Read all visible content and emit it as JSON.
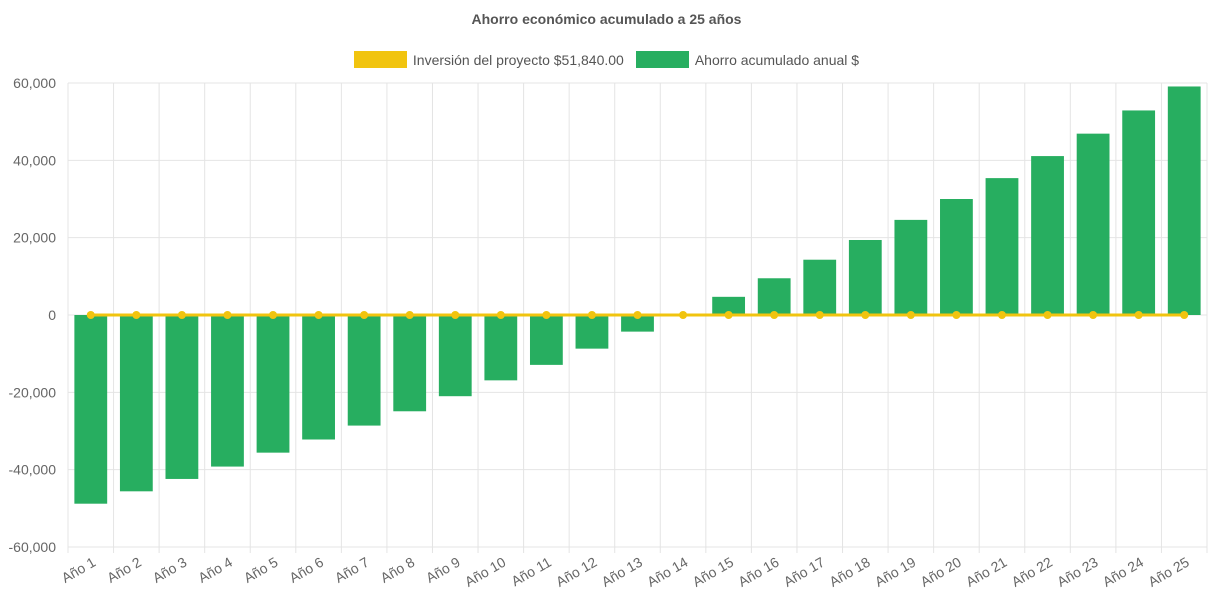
{
  "chart_data": {
    "type": "bar",
    "title": "Ahorro económico acumulado a 25 años",
    "categories": [
      "Año 1",
      "Año 2",
      "Año 3",
      "Año 4",
      "Año 5",
      "Año 6",
      "Año 7",
      "Año 8",
      "Año 9",
      "Año 10",
      "Año 11",
      "Año 12",
      "Año 13",
      "Año 14",
      "Año 15",
      "Año 16",
      "Año 17",
      "Año 18",
      "Año 19",
      "Año 20",
      "Año 21",
      "Año 22",
      "Año 23",
      "Año 24",
      "Año 25"
    ],
    "series": [
      {
        "name": "Inversión del proyecto $51,840.00",
        "kind": "line",
        "color": "#f1c40f",
        "values": [
          0,
          0,
          0,
          0,
          0,
          0,
          0,
          0,
          0,
          0,
          0,
          0,
          0,
          0,
          0,
          0,
          0,
          0,
          0,
          0,
          0,
          0,
          0,
          0,
          0
        ]
      },
      {
        "name": "Ahorro acumulado anual $",
        "kind": "bar",
        "color": "#27ae60",
        "values": [
          -48800,
          -45600,
          -42400,
          -39200,
          -35600,
          -32200,
          -28600,
          -24900,
          -21000,
          -16900,
          -12900,
          -8700,
          -4300,
          0,
          4700,
          9500,
          14300,
          19400,
          24600,
          30000,
          35400,
          41100,
          46900,
          52900,
          59100
        ]
      }
    ],
    "xlabel": "",
    "ylabel": "",
    "ylim": [
      -60000,
      60000
    ],
    "yticks": [
      60000,
      40000,
      20000,
      0,
      -20000,
      -40000,
      -60000
    ],
    "ytick_labels": [
      "60,000",
      "40,000",
      "20,000",
      "0",
      "-20,000",
      "-40,000",
      "-60,000"
    ],
    "grid": true,
    "legend_position": "top"
  }
}
